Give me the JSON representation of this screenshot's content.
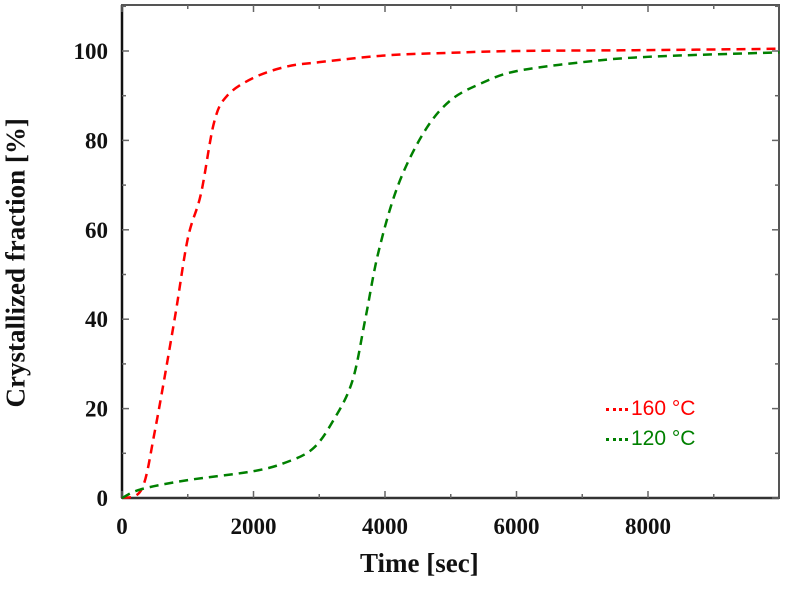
{
  "chart_data": {
    "type": "line",
    "title": "",
    "xlabel": "Time [sec]",
    "ylabel": "Crystallized fraction [%]",
    "xlim": [
      0,
      10000
    ],
    "ylim": [
      0,
      110
    ],
    "xticks": [
      0,
      2000,
      4000,
      6000,
      8000
    ],
    "yticks": [
      0,
      20,
      40,
      60,
      80,
      100
    ],
    "grid": false,
    "legend_position": "lower right",
    "series": [
      {
        "name": "160 °C",
        "color": "#ff0000",
        "style": "dashed",
        "x": [
          0,
          300,
          500,
          800,
          1000,
          1200,
          1400,
          1600,
          2000,
          2500,
          3000,
          4000,
          5000,
          6000,
          8000,
          10000
        ],
        "y": [
          0,
          2,
          15,
          40,
          58,
          68,
          84,
          90,
          94,
          96.5,
          97.5,
          99,
          99.6,
          100,
          100.2,
          100.5
        ]
      },
      {
        "name": "120 °C",
        "color": "#008000",
        "style": "dashed",
        "x": [
          0,
          300,
          1000,
          2000,
          2500,
          2900,
          3200,
          3500,
          3700,
          3900,
          4200,
          4600,
          5000,
          5500,
          6000,
          7000,
          8000,
          10000
        ],
        "y": [
          0,
          2,
          4,
          6,
          8,
          11,
          17,
          26,
          40,
          55,
          70,
          82,
          89,
          93,
          95.5,
          97.5,
          98.7,
          99.7
        ]
      }
    ]
  },
  "axes": {
    "xlabel": "Time [sec]",
    "ylabel": "Crystallized fraction [%]",
    "xtick_labels": [
      "0",
      "2000",
      "4000",
      "6000",
      "8000"
    ],
    "ytick_labels": [
      "0",
      "20",
      "40",
      "60",
      "80",
      "100"
    ]
  },
  "legend": {
    "items": [
      {
        "label": "160 °C",
        "color": "#ff0000"
      },
      {
        "label": "120 °C",
        "color": "#008000"
      }
    ]
  }
}
